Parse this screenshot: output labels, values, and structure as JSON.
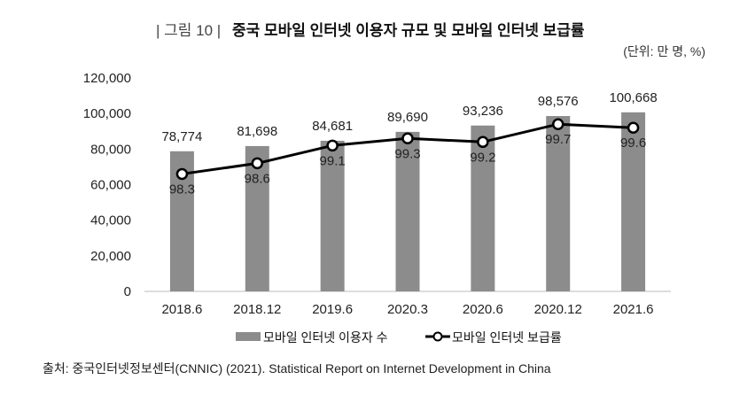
{
  "figure_label": "| 그림 10 |",
  "source": "출처: 중국인터넷정보센터(CNNIC) (2021). Statistical Report on Internet Development in China",
  "chart_data": {
    "type": "bar+line",
    "title": "중국 모바일 인터넷 이용자 규모 및 모바일 인터넷 보급률",
    "unit_note": "(단위: 만 명, %)",
    "categories": [
      "2018.6",
      "2018.12",
      "2019.6",
      "2020.3",
      "2020.6",
      "2020.12",
      "2021.6"
    ],
    "ylim": [
      0,
      120000
    ],
    "yticks": [
      "0",
      "20,000",
      "40,000",
      "60,000",
      "80,000",
      "100,000",
      "120,000"
    ],
    "y2lim": [
      95,
      101
    ],
    "grid": false,
    "legend_position": "bottom",
    "series": [
      {
        "name": "모바일 인터넷 이용자 수",
        "type": "bar",
        "color": "#8c8c8c",
        "values": [
          78774,
          81698,
          84681,
          89690,
          93236,
          98576,
          100668
        ],
        "labels": [
          "78,774",
          "81,698",
          "84,681",
          "89,690",
          "93,236",
          "98,576",
          "100,668"
        ]
      },
      {
        "name": "모바일 인터넷 보급률",
        "type": "line",
        "axis": "secondary",
        "color": "#000000",
        "values": [
          98.3,
          98.6,
          99.1,
          99.3,
          99.2,
          99.7,
          99.6
        ],
        "labels": [
          "98.3",
          "98.6",
          "99.1",
          "99.3",
          "99.2",
          "99.7",
          "99.6"
        ]
      }
    ]
  }
}
